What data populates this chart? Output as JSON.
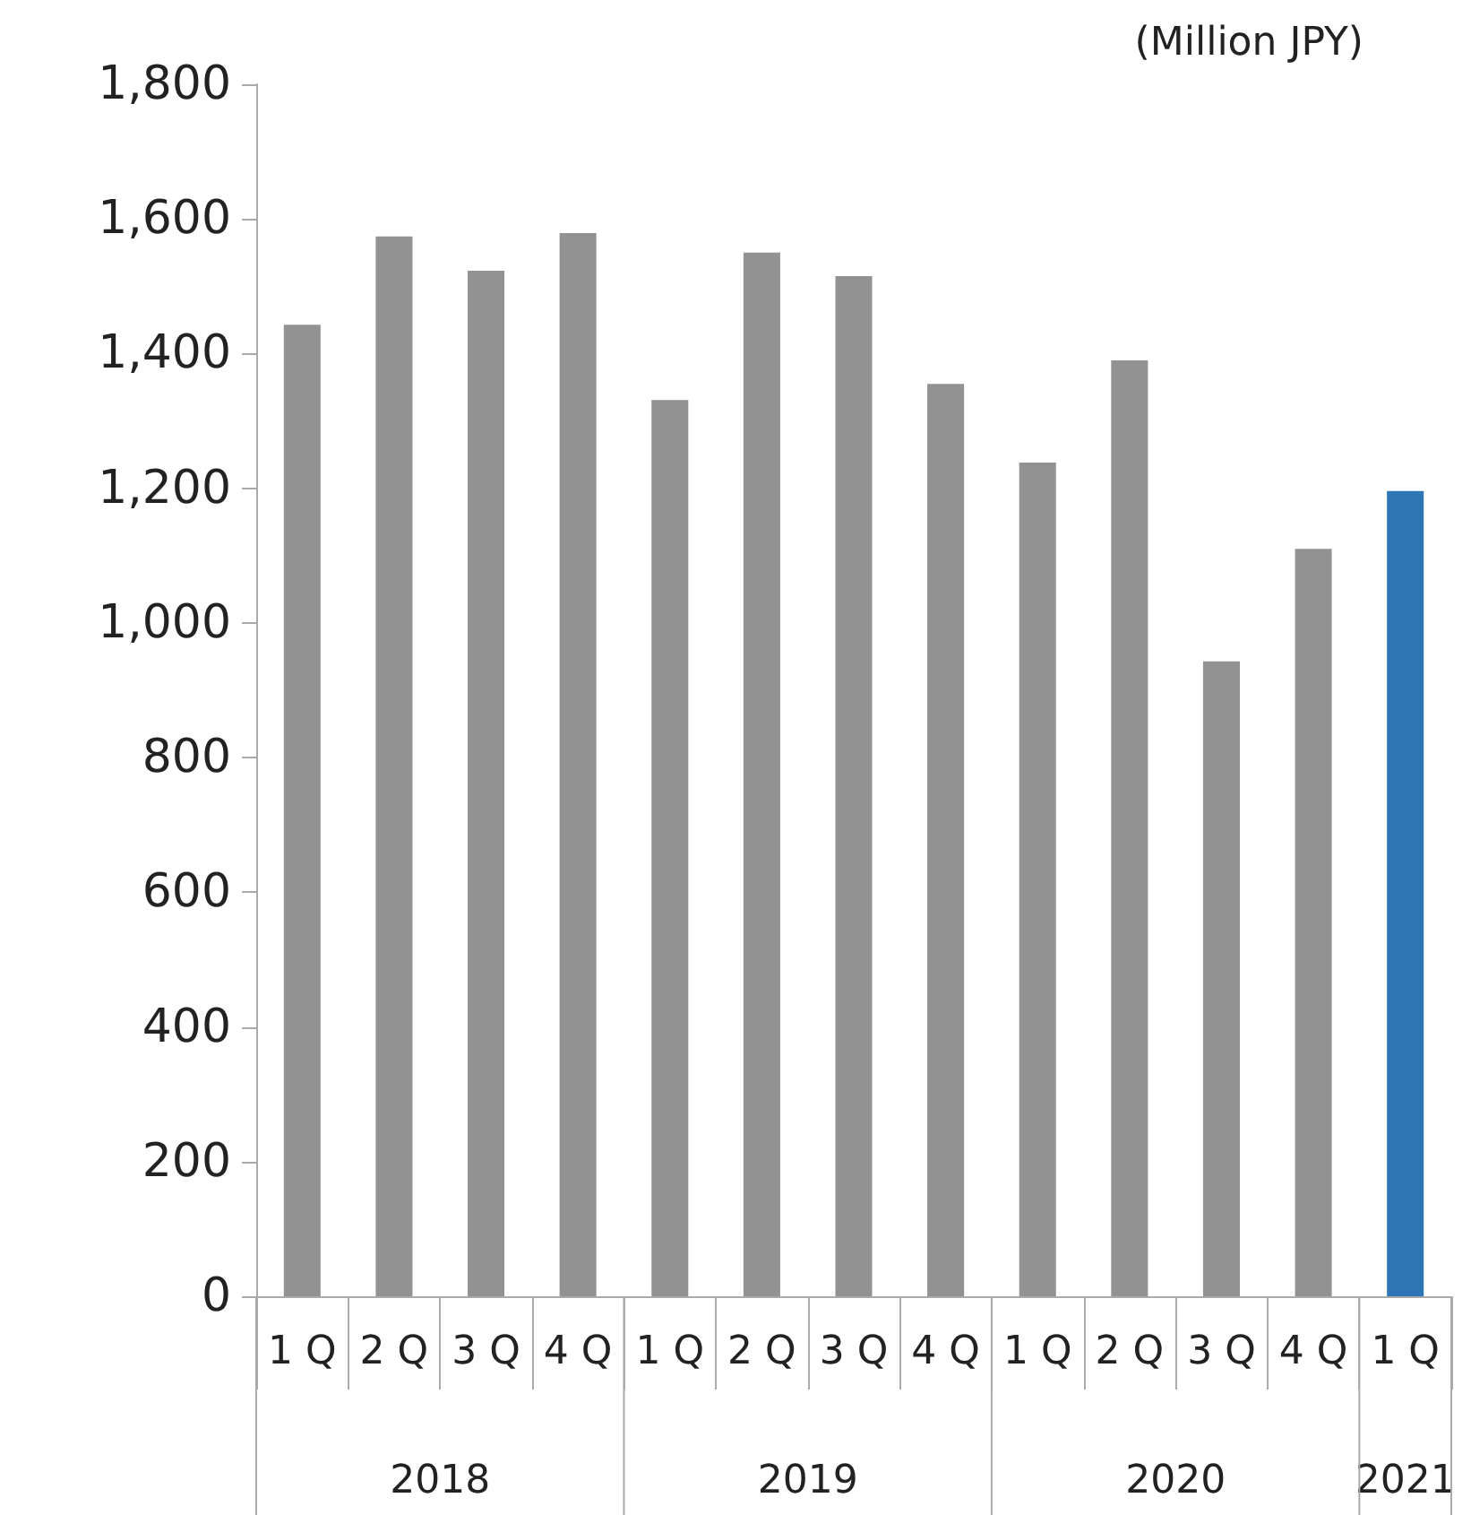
{
  "chart_data": {
    "type": "bar",
    "ylabel": "(Million JPY)",
    "categories": [
      "1 Q",
      "2 Q",
      "3 Q",
      "4 Q",
      "1 Q",
      "2 Q",
      "3 Q",
      "4 Q",
      "1 Q",
      "2 Q",
      "3 Q",
      "4 Q",
      "1 Q"
    ],
    "values": [
      1443,
      1574,
      1523,
      1579,
      1331,
      1550,
      1515,
      1355,
      1238,
      1390,
      943,
      1110,
      1196
    ],
    "colors": [
      "#929292",
      "#929292",
      "#929292",
      "#929292",
      "#929292",
      "#929292",
      "#929292",
      "#929292",
      "#929292",
      "#929292",
      "#929292",
      "#929292",
      "#2e75b6"
    ],
    "ylim": [
      0,
      1800
    ],
    "yticks": [
      0,
      200,
      400,
      600,
      800,
      {
        "value": 1000,
        "label": "1,000"
      },
      {
        "value": 1200,
        "label": "1,200"
      },
      {
        "value": 1400,
        "label": "1,400"
      },
      {
        "value": 1600,
        "label": "1,600"
      },
      {
        "value": 1800,
        "label": "1,800"
      }
    ],
    "grid": false,
    "annotations": [
      "2018",
      "2019",
      "2020",
      "2021"
    ]
  }
}
